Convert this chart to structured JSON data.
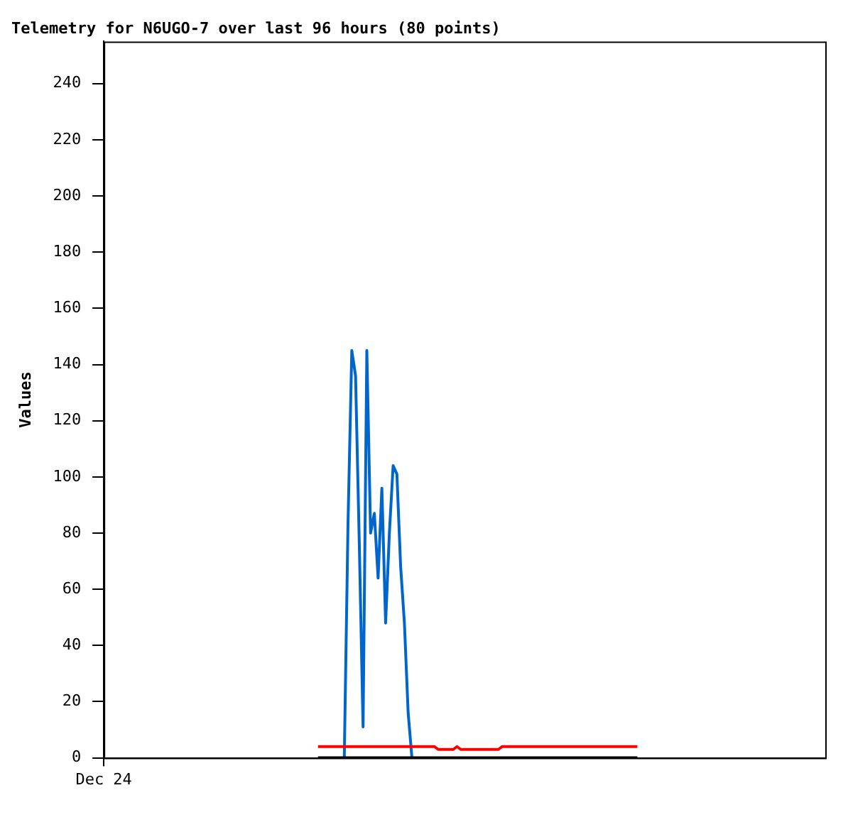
{
  "chart_data": {
    "type": "line",
    "title": "Telemetry for N6UGO-7 over last 96 hours (80 points)",
    "ylabel": "Values",
    "categories": [
      "Dec 24",
      null,
      null,
      null,
      null,
      null,
      null,
      null,
      null,
      null,
      null,
      null,
      null,
      null,
      null,
      null,
      null,
      null,
      null,
      null,
      null,
      null,
      null,
      null,
      null,
      null,
      null,
      null,
      null,
      null,
      null,
      null,
      null,
      null,
      null,
      null,
      null,
      null,
      null,
      null,
      null,
      null,
      null,
      null,
      null,
      null,
      null,
      null,
      null,
      null,
      null,
      null,
      null,
      null,
      null,
      null,
      null,
      null,
      null,
      null,
      null,
      null,
      null,
      null,
      null,
      null,
      null,
      null,
      null,
      null,
      null,
      null,
      null,
      null,
      null,
      null,
      null,
      null,
      null,
      null,
      null,
      null,
      null,
      null,
      null,
      null,
      null,
      null,
      null,
      null,
      null,
      null,
      null,
      null,
      null,
      null,
      null,
      null,
      null,
      null,
      null,
      null,
      null,
      null,
      null,
      null,
      null,
      null,
      null,
      null,
      null,
      null,
      null,
      null,
      null,
      null,
      null,
      null,
      null,
      null,
      null,
      null,
      null,
      null,
      null,
      null,
      null,
      null,
      null,
      null,
      null,
      null,
      null,
      null,
      null,
      null,
      null,
      null,
      null,
      null,
      null,
      null,
      null,
      null,
      null,
      null,
      null,
      null,
      null,
      null,
      null,
      null,
      null,
      null,
      null,
      null,
      null,
      null,
      null,
      null,
      null,
      null,
      null,
      null,
      null,
      null,
      null,
      null,
      null,
      null,
      null,
      null,
      null,
      null,
      null,
      null,
      null,
      null,
      null,
      null,
      null,
      null,
      null,
      null,
      null,
      null,
      null,
      null,
      null,
      null,
      null,
      null,
      null
    ],
    "ylim": [
      0,
      255
    ],
    "yticks": [
      0,
      20,
      40,
      60,
      80,
      100,
      120,
      140,
      160,
      180,
      200,
      220,
      240
    ],
    "grid": false,
    "legend": false,
    "marker": "none",
    "series": [
      {
        "color": "#000000",
        "values": [
          null,
          null,
          null,
          null,
          null,
          null,
          null,
          null,
          null,
          null,
          null,
          null,
          null,
          null,
          null,
          null,
          null,
          null,
          null,
          null,
          null,
          null,
          null,
          null,
          null,
          null,
          null,
          null,
          null,
          null,
          null,
          null,
          null,
          null,
          null,
          null,
          null,
          null,
          null,
          null,
          null,
          null,
          null,
          null,
          null,
          null,
          null,
          null,
          null,
          null,
          null,
          null,
          null,
          null,
          null,
          null,
          null,
          0,
          0,
          0,
          0,
          0,
          0,
          0,
          0,
          0,
          0,
          0,
          0,
          0,
          0,
          0,
          0,
          0,
          0,
          0,
          0,
          0,
          0,
          0,
          0,
          0,
          0,
          0,
          0,
          0,
          0,
          0,
          0,
          0,
          0,
          0,
          0,
          0,
          0,
          0,
          0,
          0,
          0,
          0,
          0,
          0,
          0,
          0,
          0,
          0,
          0,
          0,
          0,
          0,
          0,
          0,
          0,
          0,
          0,
          0,
          0,
          0,
          0,
          0,
          0,
          0,
          0,
          0,
          0,
          0,
          0,
          0,
          0,
          0,
          0,
          0,
          0,
          0,
          0,
          0,
          0,
          0,
          0,
          0,
          0,
          0,
          0,
          null,
          null,
          null,
          null,
          null,
          null,
          null,
          null,
          null,
          null,
          null,
          null,
          null,
          null,
          null,
          null,
          null,
          null,
          null,
          null,
          null,
          null,
          null,
          null,
          null,
          null,
          null,
          null,
          null,
          null,
          null,
          null,
          null,
          null,
          null,
          null,
          null,
          null,
          null,
          null,
          null,
          null,
          null,
          null,
          null,
          null,
          null,
          null,
          null,
          null
        ]
      },
      {
        "color": "#ff0000",
        "values": [
          null,
          null,
          null,
          null,
          null,
          null,
          null,
          null,
          null,
          null,
          null,
          null,
          null,
          null,
          null,
          null,
          null,
          null,
          null,
          null,
          null,
          null,
          null,
          null,
          null,
          null,
          null,
          null,
          null,
          null,
          null,
          null,
          null,
          null,
          null,
          null,
          null,
          null,
          null,
          null,
          null,
          null,
          null,
          null,
          null,
          null,
          null,
          null,
          null,
          null,
          null,
          null,
          null,
          null,
          null,
          null,
          null,
          4,
          4,
          4,
          4,
          4,
          4,
          4,
          4,
          4,
          4,
          4,
          4,
          4,
          4,
          4,
          4,
          4,
          4,
          4,
          4,
          4,
          4,
          4,
          4,
          4,
          4,
          4,
          4,
          4,
          4,
          4,
          4,
          3,
          3,
          3,
          3,
          3,
          4,
          3,
          3,
          3,
          3,
          3,
          3,
          3,
          3,
          3,
          3,
          3,
          4,
          4,
          4,
          4,
          4,
          4,
          4,
          4,
          4,
          4,
          4,
          4,
          4,
          4,
          4,
          4,
          4,
          4,
          4,
          4,
          4,
          4,
          4,
          4,
          4,
          4,
          4,
          4,
          4,
          4,
          4,
          4,
          4,
          4,
          4,
          4,
          4,
          null,
          null,
          null,
          null,
          null,
          null,
          null,
          null,
          null,
          null,
          null,
          null,
          null,
          null,
          null,
          null,
          null,
          null,
          null,
          null,
          null,
          null,
          null,
          null,
          null,
          null,
          null,
          null,
          null,
          null,
          null,
          null,
          null,
          null,
          null,
          null,
          null,
          null,
          null,
          null,
          null,
          null,
          null,
          null,
          null,
          null,
          null,
          null,
          null,
          null
        ]
      },
      {
        "color": "#0066cc",
        "values": [
          null,
          null,
          null,
          null,
          null,
          null,
          null,
          null,
          null,
          null,
          null,
          null,
          null,
          null,
          null,
          null,
          null,
          null,
          null,
          null,
          null,
          null,
          null,
          null,
          null,
          null,
          null,
          null,
          null,
          null,
          null,
          null,
          null,
          null,
          null,
          null,
          null,
          null,
          null,
          null,
          null,
          null,
          null,
          null,
          null,
          null,
          null,
          null,
          null,
          null,
          null,
          null,
          null,
          null,
          null,
          null,
          null,
          null,
          null,
          null,
          null,
          null,
          null,
          null,
          0,
          84,
          145,
          136,
          76,
          11,
          145,
          80,
          87,
          64,
          96,
          48,
          80,
          104,
          101,
          68,
          48,
          16,
          0,
          null,
          null,
          null,
          null,
          null,
          null,
          null,
          null,
          null,
          null,
          null,
          null,
          null,
          null,
          null,
          null,
          null,
          null,
          null,
          null,
          null,
          null,
          null,
          null,
          null,
          null,
          null,
          null,
          null,
          null,
          null,
          null,
          null,
          null,
          null,
          null,
          null,
          null,
          null,
          null,
          null,
          null,
          null,
          null,
          null,
          null,
          null,
          null,
          null,
          null,
          null,
          null,
          null,
          null,
          null,
          null,
          null,
          null,
          null,
          null,
          null,
          null,
          null,
          null,
          null,
          null,
          null,
          null,
          null,
          null,
          null,
          null,
          null,
          null,
          null,
          null,
          null,
          null,
          null,
          null,
          null,
          null,
          null,
          null,
          null,
          null,
          null,
          null,
          null,
          null,
          null,
          null,
          null,
          null,
          null,
          null,
          null,
          null,
          null,
          null,
          null,
          null,
          null,
          null,
          null,
          null,
          null,
          null,
          null,
          null
        ]
      }
    ]
  }
}
